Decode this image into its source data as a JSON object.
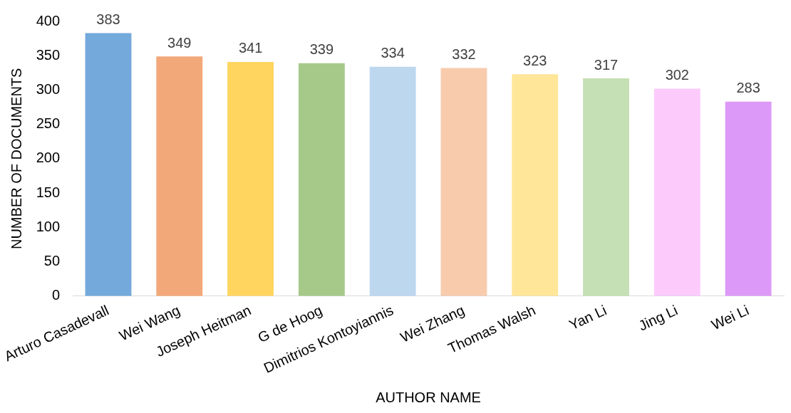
{
  "chart_data": {
    "type": "bar",
    "xlabel": "AUTHOR NAME",
    "ylabel": "NUMBER OF DOCUMENTS",
    "categories": [
      "Arturo Casadevall",
      "Wei Wang",
      "Joseph Heitman",
      "G de Hoog",
      "Dimitrios Kontoyiannis",
      "Wei Zhang",
      "Thomas Walsh",
      "Yan Li",
      "Jing Li",
      "Wei Li"
    ],
    "values": [
      383,
      349,
      341,
      339,
      334,
      332,
      323,
      317,
      302,
      283
    ],
    "colors": [
      "#74a9db",
      "#f2a878",
      "#ffd55f",
      "#a6c98a",
      "#bdd7ee",
      "#f8cbad",
      "#ffe699",
      "#c5e0b4",
      "#fccbfc",
      "#dd99f8"
    ],
    "ylim": [
      0,
      400
    ],
    "yticks": [
      0,
      50,
      100,
      150,
      200,
      250,
      300,
      350,
      400
    ],
    "grid": false,
    "legend": false,
    "data_labels": true
  }
}
